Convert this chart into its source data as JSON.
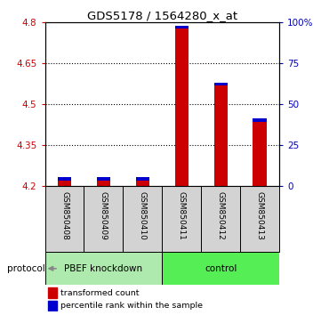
{
  "title": "GDS5178 / 1564280_x_at",
  "samples": [
    "GSM850408",
    "GSM850409",
    "GSM850410",
    "GSM850411",
    "GSM850412",
    "GSM850413"
  ],
  "group_labels": [
    "PBEF knockdown",
    "control"
  ],
  "red_values": [
    4.222,
    4.222,
    4.222,
    4.775,
    4.567,
    4.435
  ],
  "blue_heights": [
    0.012,
    0.012,
    0.012,
    0.012,
    0.012,
    0.012
  ],
  "ymin": 4.2,
  "ymax": 4.8,
  "yticks_left": [
    4.2,
    4.35,
    4.5,
    4.65,
    4.8
  ],
  "yticks_right": [
    0,
    25,
    50,
    75,
    100
  ],
  "bar_width": 0.35,
  "knockdown_bg": "#aeeaae",
  "control_bg": "#55ee55",
  "bar_color_red": "#cc0000",
  "bar_color_blue": "#0000cc",
  "xlabel_color_left": "#cc0000",
  "xlabel_color_right": "#0000bb",
  "sample_bg": "#d3d3d3",
  "grid_yticks": [
    4.35,
    4.5,
    4.65
  ]
}
